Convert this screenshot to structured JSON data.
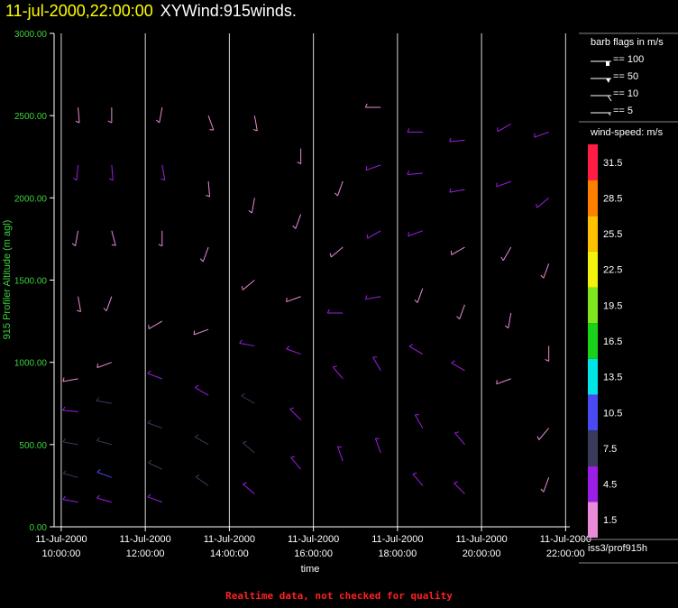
{
  "header": {
    "timestamp": "11-jul-2000,22:00:00",
    "name": "XYWind:915winds."
  },
  "footer": {
    "note": "Realtime data, not checked for quality"
  },
  "legend": {
    "barb_title": "barb flags in m/s",
    "barbs": [
      {
        "label": "== 100"
      },
      {
        "label": "== 50"
      },
      {
        "label": "== 10"
      },
      {
        "label": "== 5"
      }
    ],
    "speed_title": "wind-speed: m/s",
    "speed_scale": [
      {
        "label": "1.5",
        "color": "#e98bd9"
      },
      {
        "label": "4.5",
        "color": "#9b1ee6"
      },
      {
        "label": "7.5",
        "color": "#3a3a5a"
      },
      {
        "label": "10.5",
        "color": "#4a4af2"
      },
      {
        "label": "13.5",
        "color": "#00e5e5"
      },
      {
        "label": "16.5",
        "color": "#1bd21b"
      },
      {
        "label": "19.5",
        "color": "#7fe51e"
      },
      {
        "label": "22.5",
        "color": "#f2f20c"
      },
      {
        "label": "25.5",
        "color": "#ffc100"
      },
      {
        "label": "28.5",
        "color": "#ff7f00"
      },
      {
        "label": "31.5",
        "color": "#ff1c45"
      }
    ],
    "source": "iss3/prof915h"
  },
  "chart_data": {
    "type": "scatter",
    "xlabel": "time",
    "ylabel": "915 Profiler Altitude (m agl)",
    "x_ticks": [
      {
        "date": "11-Jul-2000",
        "time": "10:00:00",
        "hour": 10
      },
      {
        "date": "11-Jul-2000",
        "time": "12:00:00",
        "hour": 12
      },
      {
        "date": "11-Jul-2000",
        "time": "14:00:00",
        "hour": 14
      },
      {
        "date": "11-Jul-2000",
        "time": "16:00:00",
        "hour": 16
      },
      {
        "date": "11-Jul-2000",
        "time": "18:00:00",
        "hour": 18
      },
      {
        "date": "11-Jul-2000",
        "time": "20:00:00",
        "hour": 20
      },
      {
        "date": "11-Jul-2000",
        "time": "22:00:00",
        "hour": 22
      }
    ],
    "y_ticks": [
      "0.00",
      "500.00",
      "1000.00",
      "1500.00",
      "2000.00",
      "2500.00",
      "3000.00"
    ],
    "xlim_hours": [
      9.83,
      22.1
    ],
    "ylim": [
      0,
      3000
    ],
    "grid": "vertical lines at each time tick",
    "series": [
      {
        "values": [
          {
            "hour": 10.4,
            "alt": 2550,
            "dir": 175,
            "spd": 3
          },
          {
            "hour": 10.4,
            "alt": 2200,
            "dir": 185,
            "spd": 4
          },
          {
            "hour": 10.4,
            "alt": 1800,
            "dir": 190,
            "spd": 3
          },
          {
            "hour": 10.4,
            "alt": 1400,
            "dir": 170,
            "spd": 3
          },
          {
            "hour": 10.4,
            "alt": 900,
            "dir": 260,
            "spd": 2
          },
          {
            "hour": 10.4,
            "alt": 700,
            "dir": 275,
            "spd": 6
          },
          {
            "hour": 10.4,
            "alt": 500,
            "dir": 280,
            "spd": 8
          },
          {
            "hour": 10.4,
            "alt": 300,
            "dir": 285,
            "spd": 9
          },
          {
            "hour": 10.4,
            "alt": 150,
            "dir": 280,
            "spd": 6
          },
          {
            "hour": 11.2,
            "alt": 2550,
            "dir": 180,
            "spd": 3
          },
          {
            "hour": 11.2,
            "alt": 2200,
            "dir": 175,
            "spd": 4
          },
          {
            "hour": 11.2,
            "alt": 1800,
            "dir": 165,
            "spd": 3
          },
          {
            "hour": 11.2,
            "alt": 1400,
            "dir": 200,
            "spd": 2
          },
          {
            "hour": 11.2,
            "alt": 1000,
            "dir": 250,
            "spd": 3
          },
          {
            "hour": 11.2,
            "alt": 750,
            "dir": 280,
            "spd": 7
          },
          {
            "hour": 11.2,
            "alt": 500,
            "dir": 285,
            "spd": 8
          },
          {
            "hour": 11.2,
            "alt": 300,
            "dir": 290,
            "spd": 10
          },
          {
            "hour": 11.2,
            "alt": 150,
            "dir": 285,
            "spd": 6
          },
          {
            "hour": 12.4,
            "alt": 2550,
            "dir": 190,
            "spd": 3
          },
          {
            "hour": 12.4,
            "alt": 2200,
            "dir": 170,
            "spd": 4
          },
          {
            "hour": 12.4,
            "alt": 1800,
            "dir": 180,
            "spd": 3
          },
          {
            "hour": 12.4,
            "alt": 1250,
            "dir": 240,
            "spd": 2
          },
          {
            "hour": 12.4,
            "alt": 900,
            "dir": 290,
            "spd": 5
          },
          {
            "hour": 12.4,
            "alt": 600,
            "dir": 290,
            "spd": 8
          },
          {
            "hour": 12.4,
            "alt": 350,
            "dir": 295,
            "spd": 9
          },
          {
            "hour": 12.4,
            "alt": 150,
            "dir": 290,
            "spd": 6
          },
          {
            "hour": 13.5,
            "alt": 2500,
            "dir": 160,
            "spd": 3
          },
          {
            "hour": 13.5,
            "alt": 2100,
            "dir": 175,
            "spd": 3
          },
          {
            "hour": 13.5,
            "alt": 1700,
            "dir": 200,
            "spd": 2
          },
          {
            "hour": 13.5,
            "alt": 1200,
            "dir": 250,
            "spd": 3
          },
          {
            "hour": 13.5,
            "alt": 800,
            "dir": 300,
            "spd": 6
          },
          {
            "hour": 13.5,
            "alt": 500,
            "dir": 300,
            "spd": 8
          },
          {
            "hour": 13.5,
            "alt": 250,
            "dir": 305,
            "spd": 8
          },
          {
            "hour": 14.6,
            "alt": 2500,
            "dir": 170,
            "spd": 3
          },
          {
            "hour": 14.6,
            "alt": 2000,
            "dir": 190,
            "spd": 3
          },
          {
            "hour": 14.6,
            "alt": 1500,
            "dir": 230,
            "spd": 2
          },
          {
            "hour": 14.6,
            "alt": 1100,
            "dir": 280,
            "spd": 4
          },
          {
            "hour": 14.6,
            "alt": 750,
            "dir": 300,
            "spd": 7
          },
          {
            "hour": 14.6,
            "alt": 450,
            "dir": 310,
            "spd": 7
          },
          {
            "hour": 14.6,
            "alt": 200,
            "dir": 310,
            "spd": 6
          },
          {
            "hour": 15.7,
            "alt": 2300,
            "dir": 180,
            "spd": 3
          },
          {
            "hour": 15.7,
            "alt": 1900,
            "dir": 200,
            "spd": 3
          },
          {
            "hour": 15.7,
            "alt": 1400,
            "dir": 250,
            "spd": 3
          },
          {
            "hour": 15.7,
            "alt": 1050,
            "dir": 290,
            "spd": 4
          },
          {
            "hour": 15.7,
            "alt": 650,
            "dir": 315,
            "spd": 6
          },
          {
            "hour": 15.7,
            "alt": 350,
            "dir": 320,
            "spd": 5
          },
          {
            "hour": 16.7,
            "alt": 2100,
            "dir": 200,
            "spd": 3
          },
          {
            "hour": 16.7,
            "alt": 1700,
            "dir": 230,
            "spd": 3
          },
          {
            "hour": 16.7,
            "alt": 1300,
            "dir": 270,
            "spd": 4
          },
          {
            "hour": 16.7,
            "alt": 900,
            "dir": 320,
            "spd": 5
          },
          {
            "hour": 16.7,
            "alt": 400,
            "dir": 340,
            "spd": 4
          },
          {
            "hour": 17.6,
            "alt": 2550,
            "dir": 270,
            "spd": 3
          },
          {
            "hour": 17.6,
            "alt": 2200,
            "dir": 250,
            "spd": 4
          },
          {
            "hour": 17.6,
            "alt": 1800,
            "dir": 240,
            "spd": 4
          },
          {
            "hour": 17.6,
            "alt": 1400,
            "dir": 260,
            "spd": 4
          },
          {
            "hour": 17.6,
            "alt": 950,
            "dir": 330,
            "spd": 5
          },
          {
            "hour": 17.6,
            "alt": 450,
            "dir": 340,
            "spd": 4
          },
          {
            "hour": 18.6,
            "alt": 2400,
            "dir": 270,
            "spd": 4
          },
          {
            "hour": 18.6,
            "alt": 2150,
            "dir": 265,
            "spd": 4
          },
          {
            "hour": 18.6,
            "alt": 1800,
            "dir": 250,
            "spd": 4
          },
          {
            "hour": 18.6,
            "alt": 1450,
            "dir": 200,
            "spd": 3
          },
          {
            "hour": 18.6,
            "alt": 1050,
            "dir": 300,
            "spd": 5
          },
          {
            "hour": 18.6,
            "alt": 600,
            "dir": 330,
            "spd": 4
          },
          {
            "hour": 18.6,
            "alt": 250,
            "dir": 320,
            "spd": 4
          },
          {
            "hour": 19.6,
            "alt": 2350,
            "dir": 265,
            "spd": 4
          },
          {
            "hour": 19.6,
            "alt": 2050,
            "dir": 260,
            "spd": 4
          },
          {
            "hour": 19.6,
            "alt": 1700,
            "dir": 240,
            "spd": 3
          },
          {
            "hour": 19.6,
            "alt": 1350,
            "dir": 200,
            "spd": 3
          },
          {
            "hour": 19.6,
            "alt": 950,
            "dir": 300,
            "spd": 5
          },
          {
            "hour": 19.6,
            "alt": 500,
            "dir": 320,
            "spd": 4
          },
          {
            "hour": 19.6,
            "alt": 200,
            "dir": 315,
            "spd": 4
          },
          {
            "hour": 20.7,
            "alt": 2450,
            "dir": 240,
            "spd": 4
          },
          {
            "hour": 20.7,
            "alt": 2100,
            "dir": 250,
            "spd": 4
          },
          {
            "hour": 20.7,
            "alt": 1700,
            "dir": 210,
            "spd": 3
          },
          {
            "hour": 20.7,
            "alt": 1300,
            "dir": 190,
            "spd": 3
          },
          {
            "hour": 20.7,
            "alt": 900,
            "dir": 250,
            "spd": 3
          },
          {
            "hour": 21.6,
            "alt": 2400,
            "dir": 250,
            "spd": 4
          },
          {
            "hour": 21.6,
            "alt": 2000,
            "dir": 230,
            "spd": 4
          },
          {
            "hour": 21.6,
            "alt": 1600,
            "dir": 200,
            "spd": 3
          },
          {
            "hour": 21.6,
            "alt": 1100,
            "dir": 180,
            "spd": 3
          },
          {
            "hour": 21.6,
            "alt": 600,
            "dir": 220,
            "spd": 3
          },
          {
            "hour": 21.6,
            "alt": 300,
            "dir": 200,
            "spd": 3
          }
        ]
      }
    ]
  }
}
